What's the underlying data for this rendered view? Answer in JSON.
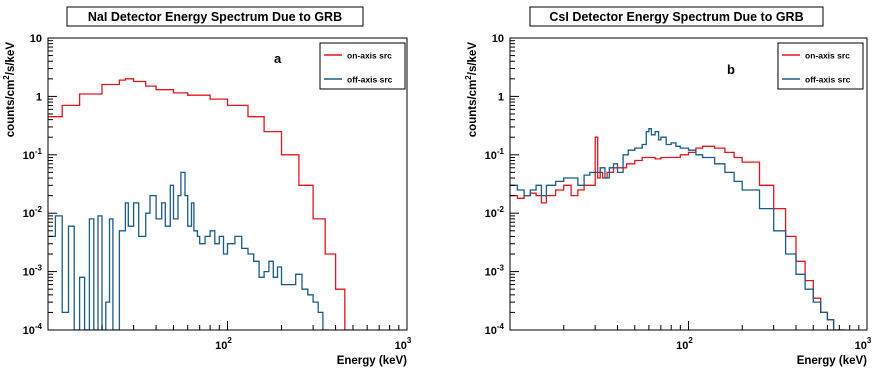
{
  "chart_data": [
    {
      "type": "line",
      "panel_label": "a",
      "title": "NaI Detector Energy Spectrum Due to GRB",
      "xlabel": "Energy (keV)",
      "ylabel_main": "counts/cm",
      "ylabel_sup": "2",
      "ylabel_rest": "/s/keV",
      "x_scale": "log",
      "y_scale": "log",
      "xlim": [
        10,
        1000
      ],
      "ylim": [
        0.0001,
        10
      ],
      "x_ticks": [
        {
          "base": "10",
          "exp": "2",
          "value": 100
        },
        {
          "base": "10",
          "exp": "3",
          "value": 1000
        }
      ],
      "y_ticks": [
        {
          "base": "10",
          "exp": "",
          "value": 10
        },
        {
          "base": "1",
          "exp": "",
          "value": 1
        },
        {
          "base": "10",
          "exp": "-1",
          "value": 0.1
        },
        {
          "base": "10",
          "exp": "-2",
          "value": 0.01
        },
        {
          "base": "10",
          "exp": "-3",
          "value": 0.001
        },
        {
          "base": "10",
          "exp": "-4",
          "value": 0.0001
        }
      ],
      "legend_position": "top-right",
      "series": [
        {
          "name": "on-axis src",
          "color": "#e8141c",
          "x": [
            10,
            12,
            15,
            20,
            25,
            27,
            30,
            35,
            40,
            50,
            60,
            80,
            100,
            130,
            160,
            200,
            250,
            300,
            350,
            400,
            450
          ],
          "y": [
            0.45,
            0.7,
            1.1,
            1.6,
            1.9,
            2.0,
            1.8,
            1.5,
            1.3,
            1.15,
            1.05,
            0.9,
            0.7,
            0.45,
            0.25,
            0.1,
            0.03,
            0.008,
            0.002,
            0.0005,
            0.0001
          ]
        },
        {
          "name": "off-axis src",
          "color": "#1b5c86",
          "x": [
            10,
            11,
            12,
            13,
            14,
            15,
            16,
            17,
            18,
            19,
            20,
            21,
            22,
            23,
            25,
            27,
            28,
            30,
            32,
            35,
            37,
            40,
            43,
            45,
            48,
            50,
            53,
            55,
            58,
            60,
            63,
            65,
            68,
            70,
            75,
            80,
            85,
            90,
            95,
            100,
            110,
            120,
            130,
            140,
            150,
            160,
            170,
            180,
            190,
            200,
            220,
            240,
            260,
            280,
            300,
            320,
            340
          ],
          "y": [
            0.004,
            0.009,
            0.0002,
            0.006,
            0.0001,
            0.0008,
            0.0001,
            0.008,
            0.0001,
            0.009,
            0.0001,
            0.0003,
            0.008,
            0.0001,
            0.005,
            0.015,
            0.006,
            0.015,
            0.004,
            0.01,
            0.02,
            0.008,
            0.015,
            0.006,
            0.03,
            0.008,
            0.02,
            0.05,
            0.02,
            0.006,
            0.015,
            0.005,
            0.004,
            0.003,
            0.004,
            0.005,
            0.003,
            0.004,
            0.002,
            0.003,
            0.004,
            0.0025,
            0.002,
            0.0015,
            0.0008,
            0.001,
            0.0015,
            0.0008,
            0.0012,
            0.0006,
            0.0006,
            0.0009,
            0.0005,
            0.0004,
            0.0003,
            0.0002,
            0.0001
          ]
        }
      ]
    },
    {
      "type": "line",
      "panel_label": "b",
      "title": "CsI Detector Energy Spectrum Due to GRB",
      "xlabel": "Energy (keV)",
      "ylabel_main": "counts/cm",
      "ylabel_sup": "2",
      "ylabel_rest": "/s/keV",
      "x_scale": "log",
      "y_scale": "log",
      "xlim": [
        10,
        1000
      ],
      "ylim": [
        0.0001,
        10
      ],
      "x_ticks": [
        {
          "base": "10",
          "exp": "2",
          "value": 100
        },
        {
          "base": "10",
          "exp": "3",
          "value": 1000
        }
      ],
      "y_ticks": [
        {
          "base": "10",
          "exp": "",
          "value": 10
        },
        {
          "base": "1",
          "exp": "",
          "value": 1
        },
        {
          "base": "10",
          "exp": "-1",
          "value": 0.1
        },
        {
          "base": "10",
          "exp": "-2",
          "value": 0.01
        },
        {
          "base": "10",
          "exp": "-3",
          "value": 0.001
        },
        {
          "base": "10",
          "exp": "-4",
          "value": 0.0001
        }
      ],
      "legend_position": "top-right",
      "series": [
        {
          "name": "on-axis src",
          "color": "#e8141c",
          "x": [
            10,
            11,
            12,
            13,
            14,
            15,
            16,
            18,
            20,
            22,
            24,
            26,
            28,
            30,
            31,
            32,
            33,
            35,
            38,
            40,
            45,
            50,
            55,
            60,
            65,
            70,
            80,
            90,
            100,
            110,
            120,
            140,
            160,
            180,
            200,
            250,
            300,
            350,
            400,
            450,
            500,
            550,
            600,
            650,
            700
          ],
          "y": [
            0.02,
            0.018,
            0.02,
            0.022,
            0.02,
            0.015,
            0.02,
            0.025,
            0.03,
            0.02,
            0.025,
            0.03,
            0.03,
            0.2,
            0.04,
            0.05,
            0.04,
            0.05,
            0.06,
            0.06,
            0.07,
            0.08,
            0.09,
            0.09,
            0.085,
            0.09,
            0.09,
            0.1,
            0.11,
            0.13,
            0.14,
            0.13,
            0.11,
            0.09,
            0.075,
            0.03,
            0.012,
            0.004,
            0.0015,
            0.0007,
            0.00035,
            0.0002,
            0.00015,
            0.0001,
            0.0001
          ]
        },
        {
          "name": "off-axis src",
          "color": "#1b5c86",
          "x": [
            10,
            11,
            12,
            13,
            14,
            15,
            16,
            18,
            20,
            22,
            24,
            26,
            28,
            30,
            32,
            34,
            36,
            38,
            40,
            43,
            46,
            50,
            55,
            58,
            60,
            62,
            65,
            68,
            70,
            75,
            80,
            85,
            90,
            100,
            110,
            120,
            140,
            160,
            180,
            200,
            250,
            300,
            350,
            400,
            450,
            500,
            550,
            600,
            650,
            700
          ],
          "y": [
            0.03,
            0.025,
            0.02,
            0.025,
            0.03,
            0.02,
            0.03,
            0.035,
            0.04,
            0.04,
            0.03,
            0.045,
            0.05,
            0.05,
            0.06,
            0.04,
            0.06,
            0.07,
            0.05,
            0.1,
            0.12,
            0.13,
            0.15,
            0.25,
            0.28,
            0.22,
            0.25,
            0.18,
            0.2,
            0.15,
            0.16,
            0.14,
            0.13,
            0.12,
            0.1,
            0.09,
            0.07,
            0.05,
            0.035,
            0.025,
            0.012,
            0.005,
            0.002,
            0.0009,
            0.0005,
            0.0003,
            0.0002,
            0.00015,
            0.0001,
            0.0001
          ]
        }
      ]
    }
  ]
}
